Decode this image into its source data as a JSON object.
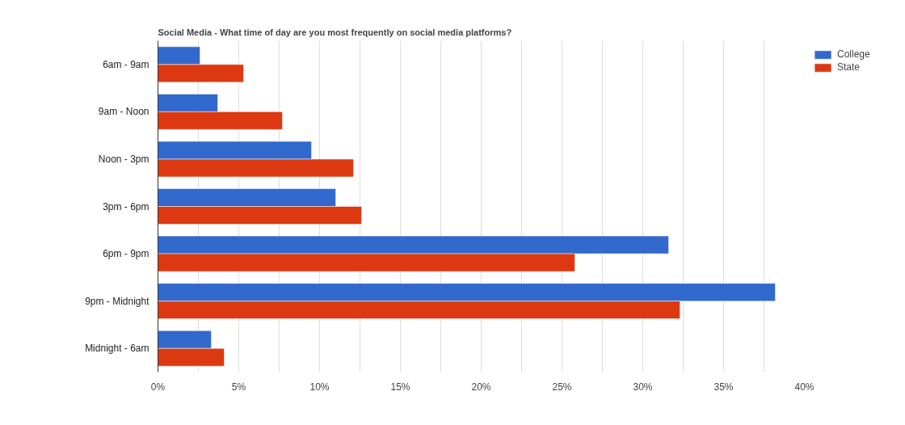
{
  "chart_data": {
    "type": "bar",
    "orientation": "horizontal",
    "title": "Social Media - What time of day are you most frequently on social media platforms?",
    "categories": [
      "6am - 9am",
      "9am - Noon",
      "Noon - 3pm",
      "3pm - 6pm",
      "6pm - 9pm",
      "9pm - Midnight",
      "Midnight - 6am"
    ],
    "series": [
      {
        "name": "College",
        "color": "#3269cc",
        "values": [
          2.6,
          3.7,
          9.5,
          11.0,
          31.6,
          38.2,
          3.3
        ]
      },
      {
        "name": "State",
        "color": "#dc3912",
        "values": [
          5.3,
          7.7,
          12.1,
          12.6,
          25.8,
          32.3,
          4.1
        ]
      }
    ],
    "xlim": [
      0,
      40
    ],
    "xticks": [
      {
        "value": 0,
        "label": "0%"
      },
      {
        "value": 2.5,
        "label": null
      },
      {
        "value": 5,
        "label": "5%"
      },
      {
        "value": 7.5,
        "label": null
      },
      {
        "value": 10,
        "label": "10%"
      },
      {
        "value": 12.5,
        "label": null
      },
      {
        "value": 15,
        "label": "15%"
      },
      {
        "value": 17.5,
        "label": null
      },
      {
        "value": 20,
        "label": "20%"
      },
      {
        "value": 22.5,
        "label": null
      },
      {
        "value": 25,
        "label": "25%"
      },
      {
        "value": 27.5,
        "label": null
      },
      {
        "value": 30,
        "label": "30%"
      },
      {
        "value": 32.5,
        "label": null
      },
      {
        "value": 35,
        "label": "35%"
      },
      {
        "value": 37.5,
        "label": null
      },
      {
        "value": 40,
        "label": "40%"
      }
    ],
    "grid": "x",
    "legend": "top right"
  }
}
